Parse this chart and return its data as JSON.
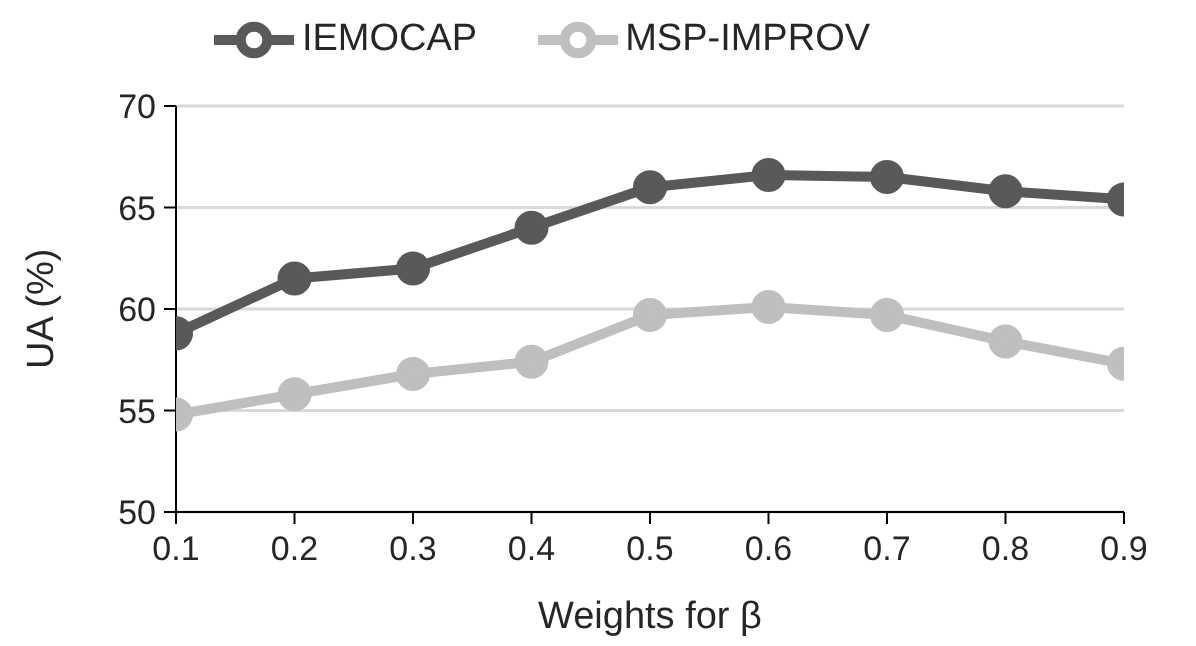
{
  "chart_data": {
    "type": "line",
    "xlabel": "Weights for β",
    "ylabel": "UA (%)",
    "x": [
      0.1,
      0.2,
      0.3,
      0.4,
      0.5,
      0.6,
      0.7,
      0.8,
      0.9
    ],
    "series": [
      {
        "name": "IEMOCAP",
        "color": "#595959",
        "values": [
          58.8,
          61.5,
          62.0,
          64.0,
          66.0,
          66.6,
          66.5,
          65.8,
          65.4
        ]
      },
      {
        "name": "MSP-IMPROV",
        "color": "#bfbfbf",
        "values": [
          54.8,
          55.8,
          56.8,
          57.4,
          59.7,
          60.1,
          59.7,
          58.4,
          57.3
        ]
      }
    ],
    "xlim": [
      0.1,
      0.9
    ],
    "xticks": [
      0.1,
      0.2,
      0.3,
      0.4,
      0.5,
      0.6,
      0.7,
      0.8,
      0.9
    ],
    "ylim": [
      50,
      70
    ],
    "yticks": [
      50,
      55,
      60,
      65,
      70
    ],
    "grid": "y",
    "legend": "top",
    "marker": "circle",
    "line_style": "solid"
  }
}
